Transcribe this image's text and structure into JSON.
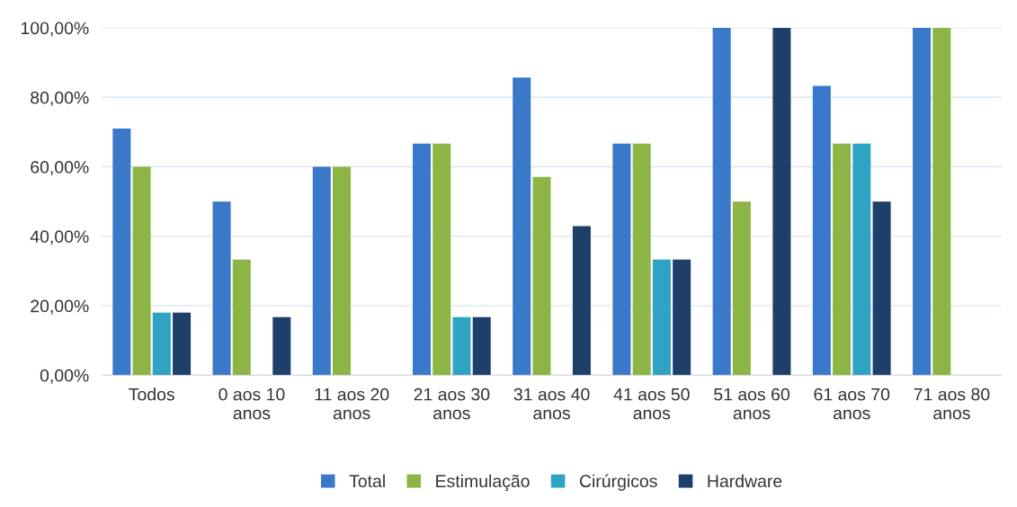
{
  "chart_data": {
    "type": "bar",
    "categories": [
      "Todos",
      "0 aos 10\nanos",
      "11 aos 20\nanos",
      "21 aos 30\nanos",
      "31 aos 40\nanos",
      "41 aos 50\nanos",
      "51 aos 60\nanos",
      "61 aos 70\nanos",
      "71 aos 80\nanos"
    ],
    "series": [
      {
        "name": "Total",
        "color": "#3a78c9",
        "values": [
          71,
          50,
          60,
          66.7,
          85.7,
          66.7,
          100,
          83.3,
          100
        ]
      },
      {
        "name": "Estimulação",
        "color": "#8db545",
        "values": [
          60,
          33.3,
          60,
          66.7,
          57.1,
          66.7,
          50,
          66.7,
          100
        ]
      },
      {
        "name": "Cirúrgicos",
        "color": "#2ea3c4",
        "values": [
          18,
          0,
          0,
          16.7,
          0,
          33.3,
          0,
          66.7,
          0
        ]
      },
      {
        "name": "Hardware",
        "color": "#1f3f6b",
        "values": [
          18,
          16.7,
          0,
          16.7,
          42.9,
          33.3,
          100,
          50,
          0
        ]
      }
    ],
    "ylim": [
      0,
      100
    ],
    "yticks": [
      {
        "value": 0,
        "label": "0,00%"
      },
      {
        "value": 20,
        "label": "20,00%"
      },
      {
        "value": 40,
        "label": "40,00%"
      },
      {
        "value": 60,
        "label": "60,00%"
      },
      {
        "value": 80,
        "label": "80,00%"
      },
      {
        "value": 100,
        "label": "100,00%"
      }
    ],
    "grid": "y",
    "legend": "bottom"
  }
}
